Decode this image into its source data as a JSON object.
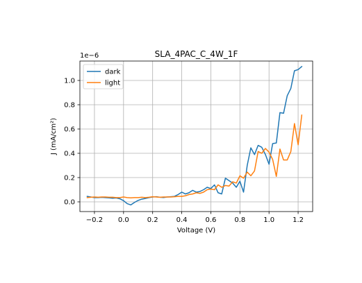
{
  "chart_data": {
    "type": "line",
    "title": "SLA_4PAC_C_4W_1F",
    "xlabel": "Voltage (V)",
    "ylabel": "J (mA/cm²)",
    "y_offset_label": "1e−6",
    "xlim": [
      -0.3,
      1.3
    ],
    "ylim": [
      -8e-08,
      1.16e-06
    ],
    "x_ticks": [
      -0.2,
      0.0,
      0.2,
      0.4,
      0.6,
      0.8,
      1.0,
      1.2
    ],
    "x_tick_labels": [
      "−0.2",
      "0.0",
      "0.2",
      "0.4",
      "0.6",
      "0.8",
      "1.0",
      "1.2"
    ],
    "y_ticks": [
      0.0,
      2e-07,
      4e-07,
      6e-07,
      8e-07,
      1e-06
    ],
    "y_tick_labels": [
      "0.0",
      "0.2",
      "0.4",
      "0.6",
      "0.8",
      "1.0"
    ],
    "grid": true,
    "legend_position": "top-left",
    "series": [
      {
        "name": "dark",
        "color": "#1f77b4",
        "x": [
          -0.25,
          -0.225,
          -0.2,
          -0.175,
          -0.15,
          -0.125,
          -0.1,
          -0.075,
          -0.05,
          -0.025,
          0.0,
          0.025,
          0.05,
          0.075,
          0.1,
          0.125,
          0.15,
          0.175,
          0.2,
          0.225,
          0.25,
          0.275,
          0.3,
          0.325,
          0.35,
          0.375,
          0.4,
          0.425,
          0.45,
          0.475,
          0.5,
          0.525,
          0.55,
          0.575,
          0.6,
          0.625,
          0.65,
          0.675,
          0.7,
          0.725,
          0.75,
          0.775,
          0.8,
          0.825,
          0.85,
          0.875,
          0.9,
          0.925,
          0.95,
          0.975,
          1.0,
          1.025,
          1.05,
          1.075,
          1.1,
          1.125,
          1.15,
          1.175,
          1.2,
          1.225
        ],
        "y": [
          4.5e-08,
          4e-08,
          3.5e-08,
          3.5e-08,
          3.7e-08,
          3.5e-08,
          3.3e-08,
          3e-08,
          3.2e-08,
          2.5e-08,
          1e-08,
          -1.5e-08,
          -2.5e-08,
          -5e-09,
          1.2e-08,
          2.2e-08,
          2.8e-08,
          3.5e-08,
          4e-08,
          4.2e-08,
          3.8e-08,
          3.6e-08,
          4e-08,
          4.2e-08,
          4.5e-08,
          6e-08,
          8e-08,
          6.5e-08,
          7.5e-08,
          9.5e-08,
          8e-08,
          8.5e-08,
          1e-07,
          1.2e-07,
          1.1e-07,
          1.4e-07,
          7.5e-08,
          6.5e-08,
          1.95e-07,
          1.75e-07,
          1.55e-07,
          1.2e-07,
          1.7e-07,
          8e-08,
          3e-07,
          4.45e-07,
          3.9e-07,
          4.65e-07,
          4.5e-07,
          3.9e-07,
          3.1e-07,
          4.8e-07,
          4.85e-07,
          7.35e-07,
          7.3e-07,
          8.75e-07,
          9.35e-07,
          1.08e-06,
          1.09e-06,
          1.115e-06
        ]
      },
      {
        "name": "light",
        "color": "#ff7f0e",
        "x": [
          -0.25,
          -0.225,
          -0.2,
          -0.175,
          -0.15,
          -0.125,
          -0.1,
          -0.075,
          -0.05,
          -0.025,
          0.0,
          0.025,
          0.05,
          0.075,
          0.1,
          0.125,
          0.15,
          0.175,
          0.2,
          0.225,
          0.25,
          0.275,
          0.3,
          0.325,
          0.35,
          0.375,
          0.4,
          0.425,
          0.45,
          0.475,
          0.5,
          0.525,
          0.55,
          0.575,
          0.6,
          0.625,
          0.65,
          0.675,
          0.7,
          0.725,
          0.75,
          0.775,
          0.8,
          0.825,
          0.85,
          0.875,
          0.9,
          0.925,
          0.95,
          0.975,
          1.0,
          1.025,
          1.05,
          1.075,
          1.1,
          1.125,
          1.15,
          1.175,
          1.2,
          1.225
        ],
        "y": [
          3.5e-08,
          3.8e-08,
          4e-08,
          3.8e-08,
          4e-08,
          4e-08,
          3.8e-08,
          3.8e-08,
          3.5e-08,
          3.5e-08,
          4e-08,
          3.5e-08,
          3.3e-08,
          3.5e-08,
          3.5e-08,
          3.8e-08,
          3.5e-08,
          3.8e-08,
          4.2e-08,
          4e-08,
          3.8e-08,
          4e-08,
          4e-08,
          4e-08,
          4.2e-08,
          4.5e-08,
          4.5e-08,
          5e-08,
          6e-08,
          6.5e-08,
          7.5e-08,
          7e-08,
          8e-08,
          1e-07,
          1.05e-07,
          1e-07,
          1.4e-07,
          1.2e-07,
          1.35e-07,
          1.3e-07,
          1.65e-07,
          1.55e-07,
          2.15e-07,
          1.95e-07,
          2.45e-07,
          2.15e-07,
          2.55e-07,
          4.15e-07,
          4e-07,
          4.4e-07,
          4.1e-07,
          3.5e-07,
          2.1e-07,
          4.35e-07,
          3.45e-07,
          3.45e-07,
          4.15e-07,
          6.45e-07,
          4.7e-07,
          7.15e-07
        ]
      }
    ]
  }
}
